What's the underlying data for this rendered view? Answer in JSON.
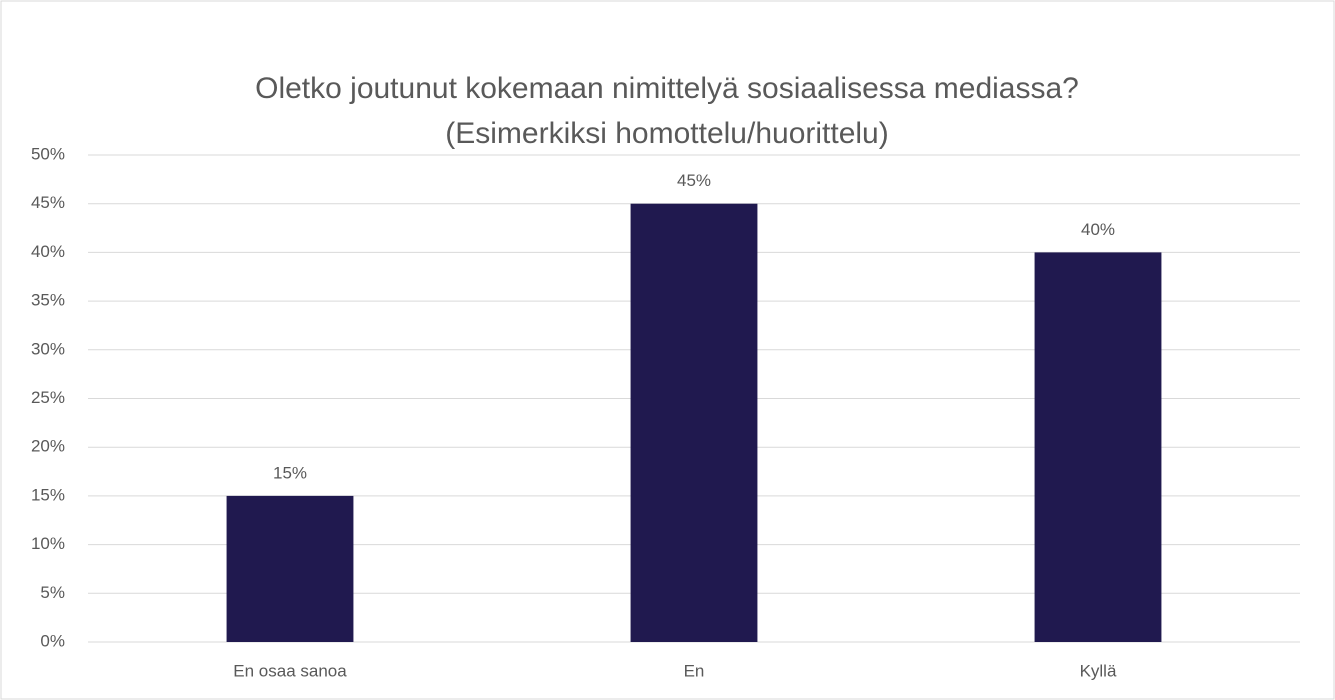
{
  "chart_data": {
    "type": "bar",
    "title": [
      "Oletko joutunut kokemaan nimittelyä sosiaalisessa mediassa?",
      "(Esimerkiksi homottelu/huorittelu)"
    ],
    "categories": [
      "En osaa sanoa",
      "En",
      "Kyllä"
    ],
    "values": [
      15,
      45,
      40
    ],
    "value_labels": [
      "15%",
      "45%",
      "40%"
    ],
    "color": "#20194f",
    "ylim": [
      0,
      50
    ],
    "yticks": [
      {
        "value": 0,
        "label": "0%"
      },
      {
        "value": 5,
        "label": "5%"
      },
      {
        "value": 10,
        "label": "10%"
      },
      {
        "value": 15,
        "label": "15%"
      },
      {
        "value": 20,
        "label": "20%"
      },
      {
        "value": 25,
        "label": "25%"
      },
      {
        "value": 30,
        "label": "30%"
      },
      {
        "value": 35,
        "label": "35%"
      },
      {
        "value": 40,
        "label": "40%"
      },
      {
        "value": 45,
        "label": "45%"
      },
      {
        "value": 50,
        "label": "50%"
      }
    ],
    "grid": true
  }
}
